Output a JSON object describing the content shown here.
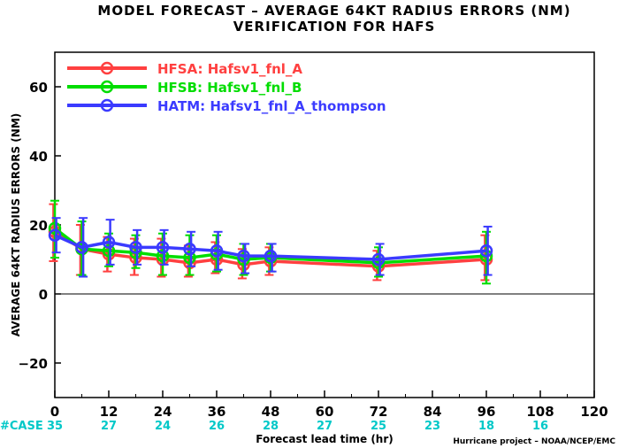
{
  "chart_data": {
    "type": "line",
    "title": "MODEL FORECAST – AVERAGE 64KT RADIUS ERRORS (NM)",
    "subtitle": "VERIFICATION FOR HAFS",
    "xlabel": "Forecast lead time (hr)",
    "ylabel": "AVERAGE 64KT RADIUS ERRORS (NM)",
    "xlim": [
      0,
      120
    ],
    "ylim": [
      -30,
      70
    ],
    "x_ticks": [
      "0",
      "12",
      "24",
      "36",
      "48",
      "60",
      "72",
      "84",
      "96",
      "108",
      "120"
    ],
    "y_ticks": [
      "60",
      "40",
      "20",
      "0",
      "−20"
    ],
    "zero_line": true,
    "legend_position": "top-left",
    "series": [
      {
        "name": "HFSA: Hafsv1_fnl_A",
        "color": "#ff4040",
        "x": [
          0,
          6,
          12,
          18,
          24,
          30,
          36,
          42,
          48,
          72,
          96
        ],
        "y": [
          18,
          13,
          11.5,
          10.5,
          10,
          9,
          10,
          8.5,
          9.5,
          8,
          10
        ],
        "err_low": [
          9.5,
          5.5,
          6.5,
          5.5,
          5,
          5,
          6,
          4.5,
          5.5,
          4,
          4
        ],
        "err_high": [
          26,
          20,
          16.5,
          16,
          16,
          14,
          15,
          13,
          13.5,
          12.5,
          17
        ]
      },
      {
        "name": "HFSB: Hafsv1_fnl_B",
        "color": "#00dd00",
        "x": [
          0,
          6,
          12,
          18,
          24,
          30,
          36,
          42,
          48,
          72,
          96
        ],
        "y": [
          19,
          13,
          12.5,
          12,
          11,
          10.5,
          11.5,
          10,
          10.5,
          9,
          11
        ],
        "err_low": [
          10.5,
          5.5,
          8,
          7.5,
          5.5,
          5.5,
          6.5,
          5.5,
          6.5,
          5,
          3
        ],
        "err_high": [
          27,
          21,
          17.5,
          17,
          17.5,
          17,
          17,
          14.5,
          14.5,
          13.5,
          18
        ]
      },
      {
        "name": "HATM: Hafsv1_fnl_A_thompson",
        "color": "#3b3bff",
        "x": [
          0,
          6,
          12,
          18,
          24,
          30,
          36,
          42,
          48,
          72,
          96
        ],
        "y": [
          17,
          13.5,
          15,
          13.5,
          13.5,
          13,
          12.5,
          11,
          11,
          10,
          12.5
        ],
        "err_low": [
          12,
          5,
          8.5,
          8.5,
          8.5,
          8,
          7,
          6,
          6.5,
          5.5,
          5.5
        ],
        "err_high": [
          22,
          22,
          21.5,
          18.5,
          18.5,
          18,
          18,
          14.5,
          14.5,
          14.5,
          19.5
        ]
      }
    ],
    "case_label": "#CASE",
    "case_counts": [
      {
        "hour": 0,
        "count": "35"
      },
      {
        "hour": 12,
        "count": "27"
      },
      {
        "hour": 24,
        "count": "24"
      },
      {
        "hour": 36,
        "count": "26"
      },
      {
        "hour": 48,
        "count": "28"
      },
      {
        "hour": 60,
        "count": "27"
      },
      {
        "hour": 72,
        "count": "25"
      },
      {
        "hour": 84,
        "count": "23"
      },
      {
        "hour": 96,
        "count": "18"
      },
      {
        "hour": 108,
        "count": "16"
      }
    ],
    "case_color": "#00c8c8"
  },
  "footer": "Hurricane project – NOAA/NCEP/EMC"
}
